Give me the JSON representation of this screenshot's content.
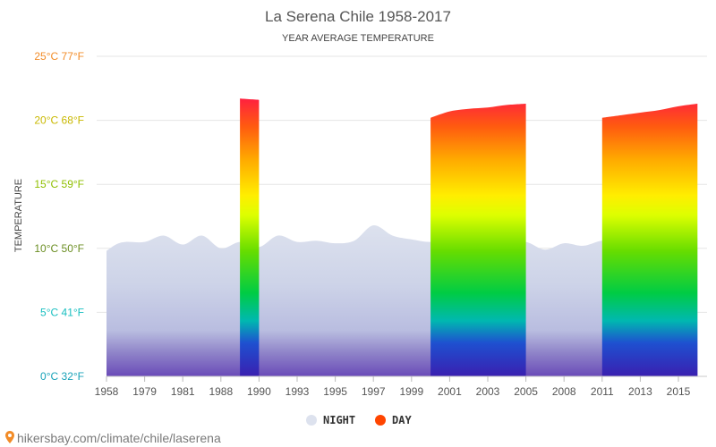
{
  "chart_data": {
    "type": "area",
    "title": "La Serena Chile 1958-2017",
    "subtitle": "YEAR AVERAGE TEMPERATURE",
    "ylabel": "TEMPERATURE",
    "xlabel": "",
    "ylim": [
      0,
      25
    ],
    "xlim": [
      1958,
      2017
    ],
    "y_ticks": [
      {
        "value": 0,
        "label": "0°C 32°F",
        "color": "#17a2b8"
      },
      {
        "value": 5,
        "label": "5°C 41°F",
        "color": "#17bfc0"
      },
      {
        "value": 10,
        "label": "10°C 50°F",
        "color": "#6b8e23"
      },
      {
        "value": 15,
        "label": "15°C 59°F",
        "color": "#8fbf00"
      },
      {
        "value": 20,
        "label": "20°C 68°F",
        "color": "#c9b800"
      },
      {
        "value": 25,
        "label": "25°C 77°F",
        "color": "#f28c28"
      }
    ],
    "x_ticks": [
      "1958",
      "1979",
      "1981",
      "1988",
      "1990",
      "1993",
      "1995",
      "1997",
      "1999",
      "2001",
      "2003",
      "2005",
      "2008",
      "2011",
      "2013",
      "2015"
    ],
    "grid": true,
    "legend_position": "bottom",
    "series": [
      {
        "name": "NIGHT",
        "color": "#dde2ee",
        "points": [
          [
            0,
            9.8
          ],
          [
            0.5,
            10.3
          ],
          [
            1,
            10.5
          ],
          [
            2,
            10.5
          ],
          [
            3,
            11.0
          ],
          [
            4,
            10.3
          ],
          [
            5,
            11.0
          ],
          [
            6,
            10.0
          ],
          [
            7,
            10.5
          ],
          [
            8,
            10.1
          ],
          [
            9,
            11.0
          ],
          [
            10,
            10.5
          ],
          [
            11,
            10.6
          ],
          [
            12,
            10.4
          ],
          [
            13,
            10.6
          ],
          [
            14,
            11.8
          ],
          [
            15,
            11.0
          ],
          [
            16,
            10.7
          ],
          [
            17,
            10.5
          ],
          [
            18,
            10.8
          ],
          [
            19,
            10.6
          ],
          [
            20,
            10.4
          ],
          [
            21,
            10.4
          ],
          [
            22,
            10.5
          ],
          [
            23,
            9.9
          ],
          [
            24,
            10.4
          ],
          [
            25,
            10.2
          ],
          [
            26,
            10.6
          ],
          [
            27,
            10.5
          ],
          [
            28,
            10.7
          ],
          [
            29,
            10.7
          ],
          [
            30,
            11.3
          ],
          [
            31,
            10.8
          ]
        ]
      },
      {
        "name": "DAY",
        "color": "#ff4500",
        "segments": [
          [
            [
              7,
              21.7
            ],
            [
              8,
              21.6
            ]
          ],
          [
            [
              17,
              20.2
            ],
            [
              18,
              20.7
            ],
            [
              19,
              20.9
            ],
            [
              20,
              21.0
            ],
            [
              21,
              21.2
            ],
            [
              22,
              21.3
            ]
          ],
          [
            [
              26,
              20.2
            ],
            [
              27,
              20.4
            ],
            [
              28,
              20.6
            ],
            [
              29,
              20.8
            ],
            [
              30,
              21.1
            ],
            [
              31,
              21.3
            ]
          ]
        ]
      }
    ]
  },
  "legend": [
    {
      "label": "NIGHT",
      "color": "#dde2ee"
    },
    {
      "label": "DAY",
      "color": "#ff4500"
    }
  ],
  "footer": {
    "text": "hikersbay.com/climate/chile/laserena",
    "icon": "location-pin-icon"
  }
}
